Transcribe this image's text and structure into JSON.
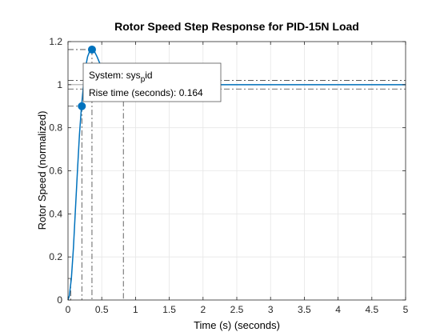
{
  "chart_data": {
    "type": "line",
    "title": "Rotor Speed Step Response for PID-15N Load",
    "xlabel": "Time (s) (seconds)",
    "ylabel": "Rotor Speed (normalized)",
    "xlim": [
      0,
      5
    ],
    "ylim": [
      0,
      1.2
    ],
    "xticks": [
      0,
      0.5,
      1,
      1.5,
      2,
      2.5,
      3,
      3.5,
      4,
      4.5,
      5
    ],
    "xtick_labels": [
      "0",
      "0.5",
      "1",
      "1.5",
      "2",
      "2.5",
      "3",
      "3.5",
      "4",
      "4.5",
      "5"
    ],
    "yticks": [
      0,
      0.2,
      0.4,
      0.6,
      0.8,
      1,
      1.2
    ],
    "ytick_labels": [
      "0",
      "0.2",
      "0.4",
      "0.6",
      "0.8",
      "1",
      "1.2"
    ],
    "grid": true,
    "series": [
      {
        "name": "sys_pid",
        "color": "#0072BD",
        "x": [
          0,
          0.02,
          0.05,
          0.08,
          0.11,
          0.14,
          0.17,
          0.2,
          0.23,
          0.26,
          0.29,
          0.32,
          0.355,
          0.39,
          0.43,
          0.47,
          0.52,
          0.58,
          0.65,
          0.75,
          0.9,
          1.1,
          1.5,
          2,
          3,
          4,
          5
        ],
        "y": [
          0,
          0.02,
          0.1,
          0.24,
          0.42,
          0.6,
          0.77,
          0.9,
          1.0,
          1.08,
          1.13,
          1.155,
          1.163,
          1.155,
          1.13,
          1.1,
          1.065,
          1.035,
          1.015,
          1.0,
          0.995,
          0.998,
          1.0,
          1.0,
          1.0,
          1.0,
          1.0
        ]
      }
    ],
    "markers": [
      {
        "name": "rise-time-point",
        "x": 0.205,
        "y": 0.9
      },
      {
        "name": "peak-point",
        "x": 0.355,
        "y": 1.163
      }
    ],
    "reference_lines": {
      "settle_band": [
        0.98,
        1.02
      ],
      "final_value": 1.0,
      "rise_lower": 0.1,
      "rise_upper": 0.9,
      "peak": 1.163,
      "rise_start_x": 0.04,
      "rise_end_x": 0.205,
      "peak_x": 0.355,
      "settle_x": 0.82
    },
    "datatip": {
      "system_prefix": "System: sys",
      "system_sub": "p",
      "system_suffix": "id",
      "rise_label": "Rise time (seconds): 0.164"
    }
  }
}
